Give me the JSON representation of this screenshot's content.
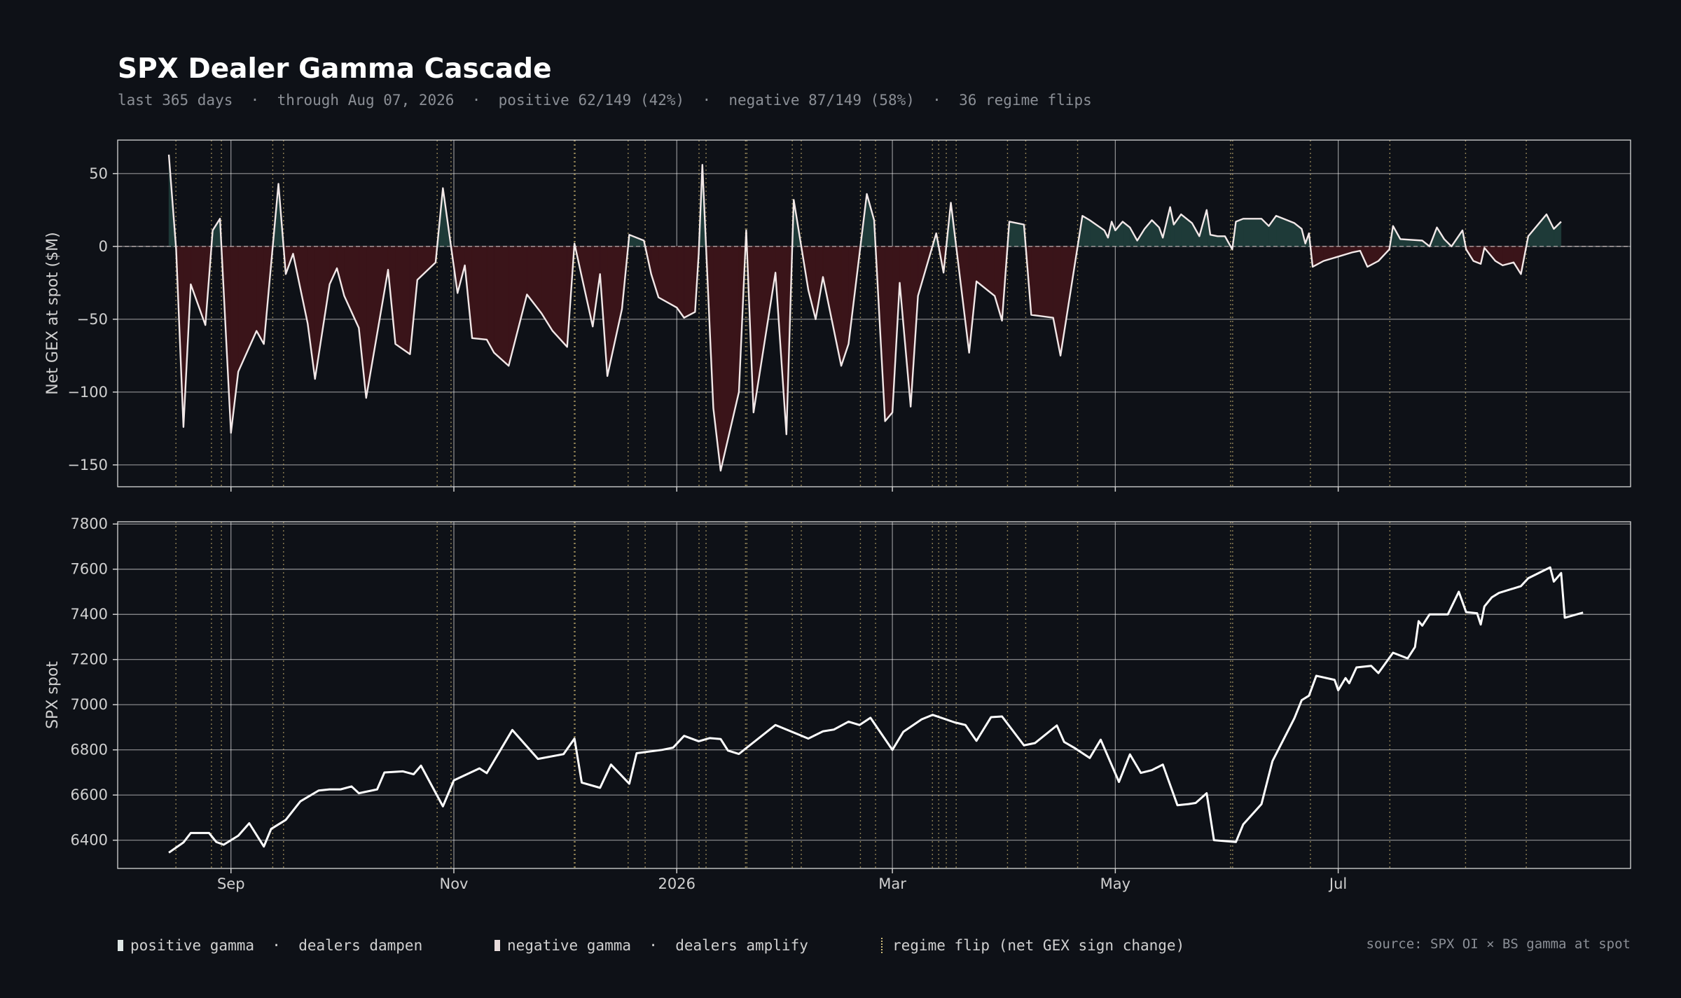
{
  "title": "SPX Dealer Gamma Cascade",
  "subtitle": "last 365 days  ·  through Aug 07, 2026  ·  positive 62/149 (42%)  ·  negative 87/149 (58%)  ·  36 regime flips",
  "legend": {
    "positive": "positive gamma  ·  dealers dampen",
    "negative": "negative gamma  ·  dealers amplify",
    "flip": "regime flip (net GEX sign change)"
  },
  "source": "source: SPX OI × BS gamma at spot",
  "colors": {
    "background": "#0e1117",
    "positive_fill": "#1e3a38",
    "negative_fill": "#3a1419",
    "line": "#ffffff",
    "flip": "#b8a46a",
    "grid": "#ffffff"
  },
  "chart_data": [
    {
      "type": "area",
      "ylabel": "Net GEX at spot ($M)",
      "ylim": [
        -165,
        73
      ],
      "yticks": [
        50,
        0,
        -50,
        -100,
        -150
      ],
      "x_date_range": [
        "2025-08-07",
        "2026-08-07"
      ],
      "xticks": [
        {
          "label": "Sep",
          "date": "2025-09-01"
        },
        {
          "label": "Nov",
          "date": "2025-11-01"
        },
        {
          "label": "2026",
          "date": "2026-01-01"
        },
        {
          "label": "Mar",
          "date": "2026-03-01"
        },
        {
          "label": "May",
          "date": "2026-05-01"
        },
        {
          "label": "Jul",
          "date": "2026-07-01"
        }
      ],
      "grid": true,
      "points": [
        [
          "2025-08-15",
          63
        ],
        [
          "2025-08-17",
          -2
        ],
        [
          "2025-08-19",
          -124
        ],
        [
          "2025-08-21",
          -26
        ],
        [
          "2025-08-25",
          -54
        ],
        [
          "2025-08-27",
          11
        ],
        [
          "2025-08-29",
          19
        ],
        [
          "2025-09-01",
          -128
        ],
        [
          "2025-09-03",
          -86
        ],
        [
          "2025-09-08",
          -58
        ],
        [
          "2025-09-10",
          -67
        ],
        [
          "2025-09-14",
          43
        ],
        [
          "2025-09-16",
          -19
        ],
        [
          "2025-09-18",
          -5
        ],
        [
          "2025-09-22",
          -53
        ],
        [
          "2025-09-24",
          -91
        ],
        [
          "2025-09-28",
          -26
        ],
        [
          "2025-09-30",
          -15
        ],
        [
          "2025-10-02",
          -34
        ],
        [
          "2025-10-06",
          -56
        ],
        [
          "2025-10-08",
          -104
        ],
        [
          "2025-10-14",
          -16
        ],
        [
          "2025-10-16",
          -67
        ],
        [
          "2025-10-20",
          -74
        ],
        [
          "2025-10-22",
          -23
        ],
        [
          "2025-10-27",
          -11
        ],
        [
          "2025-10-29",
          40
        ],
        [
          "2025-11-02",
          -32
        ],
        [
          "2025-11-04",
          -13
        ],
        [
          "2025-11-06",
          -63
        ],
        [
          "2025-11-10",
          -64
        ],
        [
          "2025-11-12",
          -73
        ],
        [
          "2025-11-16",
          -82
        ],
        [
          "2025-11-21",
          -33
        ],
        [
          "2025-11-25",
          -46
        ],
        [
          "2025-11-28",
          -58
        ],
        [
          "2025-12-02",
          -69
        ],
        [
          "2025-12-04",
          2
        ],
        [
          "2025-12-09",
          -55
        ],
        [
          "2025-12-11",
          -19
        ],
        [
          "2025-12-13",
          -89
        ],
        [
          "2025-12-17",
          -43
        ],
        [
          "2025-12-19",
          8
        ],
        [
          "2025-12-23",
          4
        ],
        [
          "2025-12-25",
          -19
        ],
        [
          "2025-12-27",
          -35
        ],
        [
          "2026-01-01",
          -42
        ],
        [
          "2026-01-03",
          -49
        ],
        [
          "2026-01-06",
          -45
        ],
        [
          "2026-01-07",
          -5
        ],
        [
          "2026-01-08",
          56
        ],
        [
          "2026-01-11",
          -111
        ],
        [
          "2026-01-13",
          -154
        ],
        [
          "2026-01-18",
          -100
        ],
        [
          "2026-01-20",
          11
        ],
        [
          "2026-01-22",
          -114
        ],
        [
          "2026-01-28",
          -18
        ],
        [
          "2026-01-31",
          -129
        ],
        [
          "2026-02-02",
          32
        ],
        [
          "2026-02-06",
          -30
        ],
        [
          "2026-02-08",
          -50
        ],
        [
          "2026-02-10",
          -21
        ],
        [
          "2026-02-15",
          -82
        ],
        [
          "2026-02-17",
          -67
        ],
        [
          "2026-02-22",
          36
        ],
        [
          "2026-02-24",
          18
        ],
        [
          "2026-02-27",
          -120
        ],
        [
          "2026-03-01",
          -114
        ],
        [
          "2026-03-03",
          -25
        ],
        [
          "2026-03-06",
          -110
        ],
        [
          "2026-03-08",
          -34
        ],
        [
          "2026-03-13",
          9
        ],
        [
          "2026-03-15",
          -18
        ],
        [
          "2026-03-17",
          30
        ],
        [
          "2026-03-22",
          -73
        ],
        [
          "2026-03-24",
          -24
        ],
        [
          "2026-03-29",
          -34
        ],
        [
          "2026-03-31",
          -51
        ],
        [
          "2026-04-02",
          17
        ],
        [
          "2026-04-06",
          15
        ],
        [
          "2026-04-08",
          -47
        ],
        [
          "2026-04-14",
          -49
        ],
        [
          "2026-04-16",
          -75
        ],
        [
          "2026-04-22",
          21
        ],
        [
          "2026-04-24",
          18
        ],
        [
          "2026-04-28",
          11
        ],
        [
          "2026-04-29",
          6
        ],
        [
          "2026-04-30",
          17
        ],
        [
          "2026-05-01",
          11
        ],
        [
          "2026-05-03",
          17
        ],
        [
          "2026-05-05",
          13
        ],
        [
          "2026-05-07",
          4
        ],
        [
          "2026-05-09",
          12
        ],
        [
          "2026-05-11",
          18
        ],
        [
          "2026-05-13",
          13
        ],
        [
          "2026-05-14",
          6
        ],
        [
          "2026-05-16",
          27
        ],
        [
          "2026-05-17",
          15
        ],
        [
          "2026-05-19",
          22
        ],
        [
          "2026-05-22",
          16
        ],
        [
          "2026-05-24",
          7
        ],
        [
          "2026-05-26",
          25
        ],
        [
          "2026-05-27",
          8
        ],
        [
          "2026-05-29",
          7
        ],
        [
          "2026-05-31",
          7
        ],
        [
          "2026-06-02",
          -2
        ],
        [
          "2026-06-03",
          17
        ],
        [
          "2026-06-05",
          19
        ],
        [
          "2026-06-10",
          19
        ],
        [
          "2026-06-12",
          14
        ],
        [
          "2026-06-14",
          21
        ],
        [
          "2026-06-19",
          16
        ],
        [
          "2026-06-21",
          12
        ],
        [
          "2026-06-22",
          2
        ],
        [
          "2026-06-23",
          9
        ],
        [
          "2026-06-24",
          -14
        ],
        [
          "2026-06-27",
          -10
        ],
        [
          "2026-07-05",
          -4
        ],
        [
          "2026-07-07",
          -3
        ],
        [
          "2026-07-09",
          -14
        ],
        [
          "2026-07-12",
          -10
        ],
        [
          "2026-07-15",
          -2
        ],
        [
          "2026-07-16",
          14
        ],
        [
          "2026-07-18",
          5
        ],
        [
          "2026-07-24",
          4
        ],
        [
          "2026-07-26",
          0
        ],
        [
          "2026-07-28",
          13
        ],
        [
          "2026-07-30",
          5
        ],
        [
          "2026-08-01",
          0
        ],
        [
          "2026-08-04",
          11
        ],
        [
          "2026-08-05",
          -2
        ],
        [
          "2026-08-07",
          -10
        ],
        [
          "2026-08-09",
          -12
        ],
        [
          "2026-08-10",
          -1
        ],
        [
          "2026-08-13",
          -10
        ],
        [
          "2026-08-15",
          -13
        ],
        [
          "2026-08-18",
          -11
        ],
        [
          "2026-08-20",
          -19
        ],
        [
          "2026-08-22",
          7
        ],
        [
          "2026-08-27",
          22
        ],
        [
          "2026-08-29",
          12
        ],
        [
          "2026-08-31",
          17
        ]
      ]
    },
    {
      "type": "line",
      "ylabel": "SPX spot",
      "ylim": [
        6275,
        7810
      ],
      "yticks": [
        7800,
        7600,
        7400,
        7200,
        7000,
        6800,
        6600,
        6400
      ],
      "grid": true,
      "points": [
        [
          "2025-08-15",
          6345
        ],
        [
          "2025-08-19",
          6390
        ],
        [
          "2025-08-21",
          6432
        ],
        [
          "2025-08-26",
          6432
        ],
        [
          "2025-08-28",
          6392
        ],
        [
          "2025-08-30",
          6380
        ],
        [
          "2025-09-03",
          6420
        ],
        [
          "2025-09-06",
          6475
        ],
        [
          "2025-09-10",
          6372
        ],
        [
          "2025-09-12",
          6450
        ],
        [
          "2025-09-16",
          6490
        ],
        [
          "2025-09-20",
          6572
        ],
        [
          "2025-09-25",
          6620
        ],
        [
          "2025-09-28",
          6625
        ],
        [
          "2025-10-01",
          6625
        ],
        [
          "2025-10-04",
          6638
        ],
        [
          "2025-10-06",
          6608
        ],
        [
          "2025-10-11",
          6625
        ],
        [
          "2025-10-13",
          6700
        ],
        [
          "2025-10-18",
          6705
        ],
        [
          "2025-10-21",
          6692
        ],
        [
          "2025-10-23",
          6730
        ],
        [
          "2025-10-29",
          6550
        ],
        [
          "2025-11-01",
          6665
        ],
        [
          "2025-11-08",
          6718
        ],
        [
          "2025-11-10",
          6697
        ],
        [
          "2025-11-17",
          6888
        ],
        [
          "2025-11-24",
          6760
        ],
        [
          "2025-12-01",
          6781
        ],
        [
          "2025-12-04",
          6850
        ],
        [
          "2025-12-06",
          6655
        ],
        [
          "2025-12-11",
          6632
        ],
        [
          "2025-12-14",
          6735
        ],
        [
          "2025-12-19",
          6650
        ],
        [
          "2025-12-21",
          6785
        ],
        [
          "2025-12-28",
          6800
        ],
        [
          "2025-12-31",
          6810
        ],
        [
          "2026-01-03",
          6862
        ],
        [
          "2026-01-07",
          6838
        ],
        [
          "2026-01-10",
          6852
        ],
        [
          "2026-01-13",
          6848
        ],
        [
          "2026-01-15",
          6797
        ],
        [
          "2026-01-18",
          6782
        ],
        [
          "2026-01-28",
          6910
        ],
        [
          "2026-02-06",
          6850
        ],
        [
          "2026-02-10",
          6882
        ],
        [
          "2026-02-13",
          6890
        ],
        [
          "2026-02-17",
          6925
        ],
        [
          "2026-02-20",
          6910
        ],
        [
          "2026-02-23",
          6942
        ],
        [
          "2026-03-01",
          6800
        ],
        [
          "2026-03-04",
          6880
        ],
        [
          "2026-03-09",
          6935
        ],
        [
          "2026-03-12",
          6955
        ],
        [
          "2026-03-18",
          6922
        ],
        [
          "2026-03-21",
          6910
        ],
        [
          "2026-03-24",
          6840
        ],
        [
          "2026-03-28",
          6945
        ],
        [
          "2026-03-31",
          6948
        ],
        [
          "2026-04-06",
          6820
        ],
        [
          "2026-04-09",
          6830
        ],
        [
          "2026-04-13",
          6882
        ],
        [
          "2026-04-15",
          6908
        ],
        [
          "2026-04-17",
          6835
        ],
        [
          "2026-04-20",
          6807
        ],
        [
          "2026-04-24",
          6764
        ],
        [
          "2026-04-27",
          6845
        ],
        [
          "2026-05-02",
          6658
        ],
        [
          "2026-05-05",
          6780
        ],
        [
          "2026-05-08",
          6698
        ],
        [
          "2026-05-11",
          6710
        ],
        [
          "2026-05-14",
          6735
        ],
        [
          "2026-05-18",
          6555
        ],
        [
          "2026-05-21",
          6560
        ],
        [
          "2026-05-23",
          6565
        ],
        [
          "2026-05-26",
          6608
        ],
        [
          "2026-05-28",
          6400
        ],
        [
          "2026-06-03",
          6392
        ],
        [
          "2026-06-05",
          6470
        ],
        [
          "2026-06-10",
          6560
        ],
        [
          "2026-06-13",
          6750
        ],
        [
          "2026-06-19",
          6940
        ],
        [
          "2026-06-21",
          7020
        ],
        [
          "2026-06-23",
          7040
        ],
        [
          "2026-06-25",
          7128
        ],
        [
          "2026-06-30",
          7110
        ],
        [
          "2026-07-01",
          7064
        ],
        [
          "2026-07-03",
          7118
        ],
        [
          "2026-07-04",
          7095
        ],
        [
          "2026-07-06",
          7165
        ],
        [
          "2026-07-10",
          7172
        ],
        [
          "2026-07-12",
          7140
        ],
        [
          "2026-07-16",
          7230
        ],
        [
          "2026-07-20",
          7205
        ],
        [
          "2026-07-22",
          7255
        ],
        [
          "2026-07-23",
          7370
        ],
        [
          "2026-07-24",
          7350
        ],
        [
          "2026-07-26",
          7400
        ],
        [
          "2026-07-28",
          7400
        ],
        [
          "2026-07-31",
          7400
        ],
        [
          "2026-08-03",
          7500
        ],
        [
          "2026-08-05",
          7410
        ],
        [
          "2026-08-08",
          7405
        ],
        [
          "2026-08-09",
          7355
        ],
        [
          "2026-08-10",
          7435
        ],
        [
          "2026-08-12",
          7475
        ],
        [
          "2026-08-14",
          7495
        ],
        [
          "2026-08-18",
          7515
        ],
        [
          "2026-08-20",
          7525
        ],
        [
          "2026-08-22",
          7560
        ],
        [
          "2026-08-28",
          7608
        ],
        [
          "2026-08-29",
          7545
        ],
        [
          "2026-08-31",
          7583
        ],
        [
          "2026-09-01",
          7385
        ],
        [
          "2026-09-06",
          7408
        ]
      ]
    }
  ]
}
